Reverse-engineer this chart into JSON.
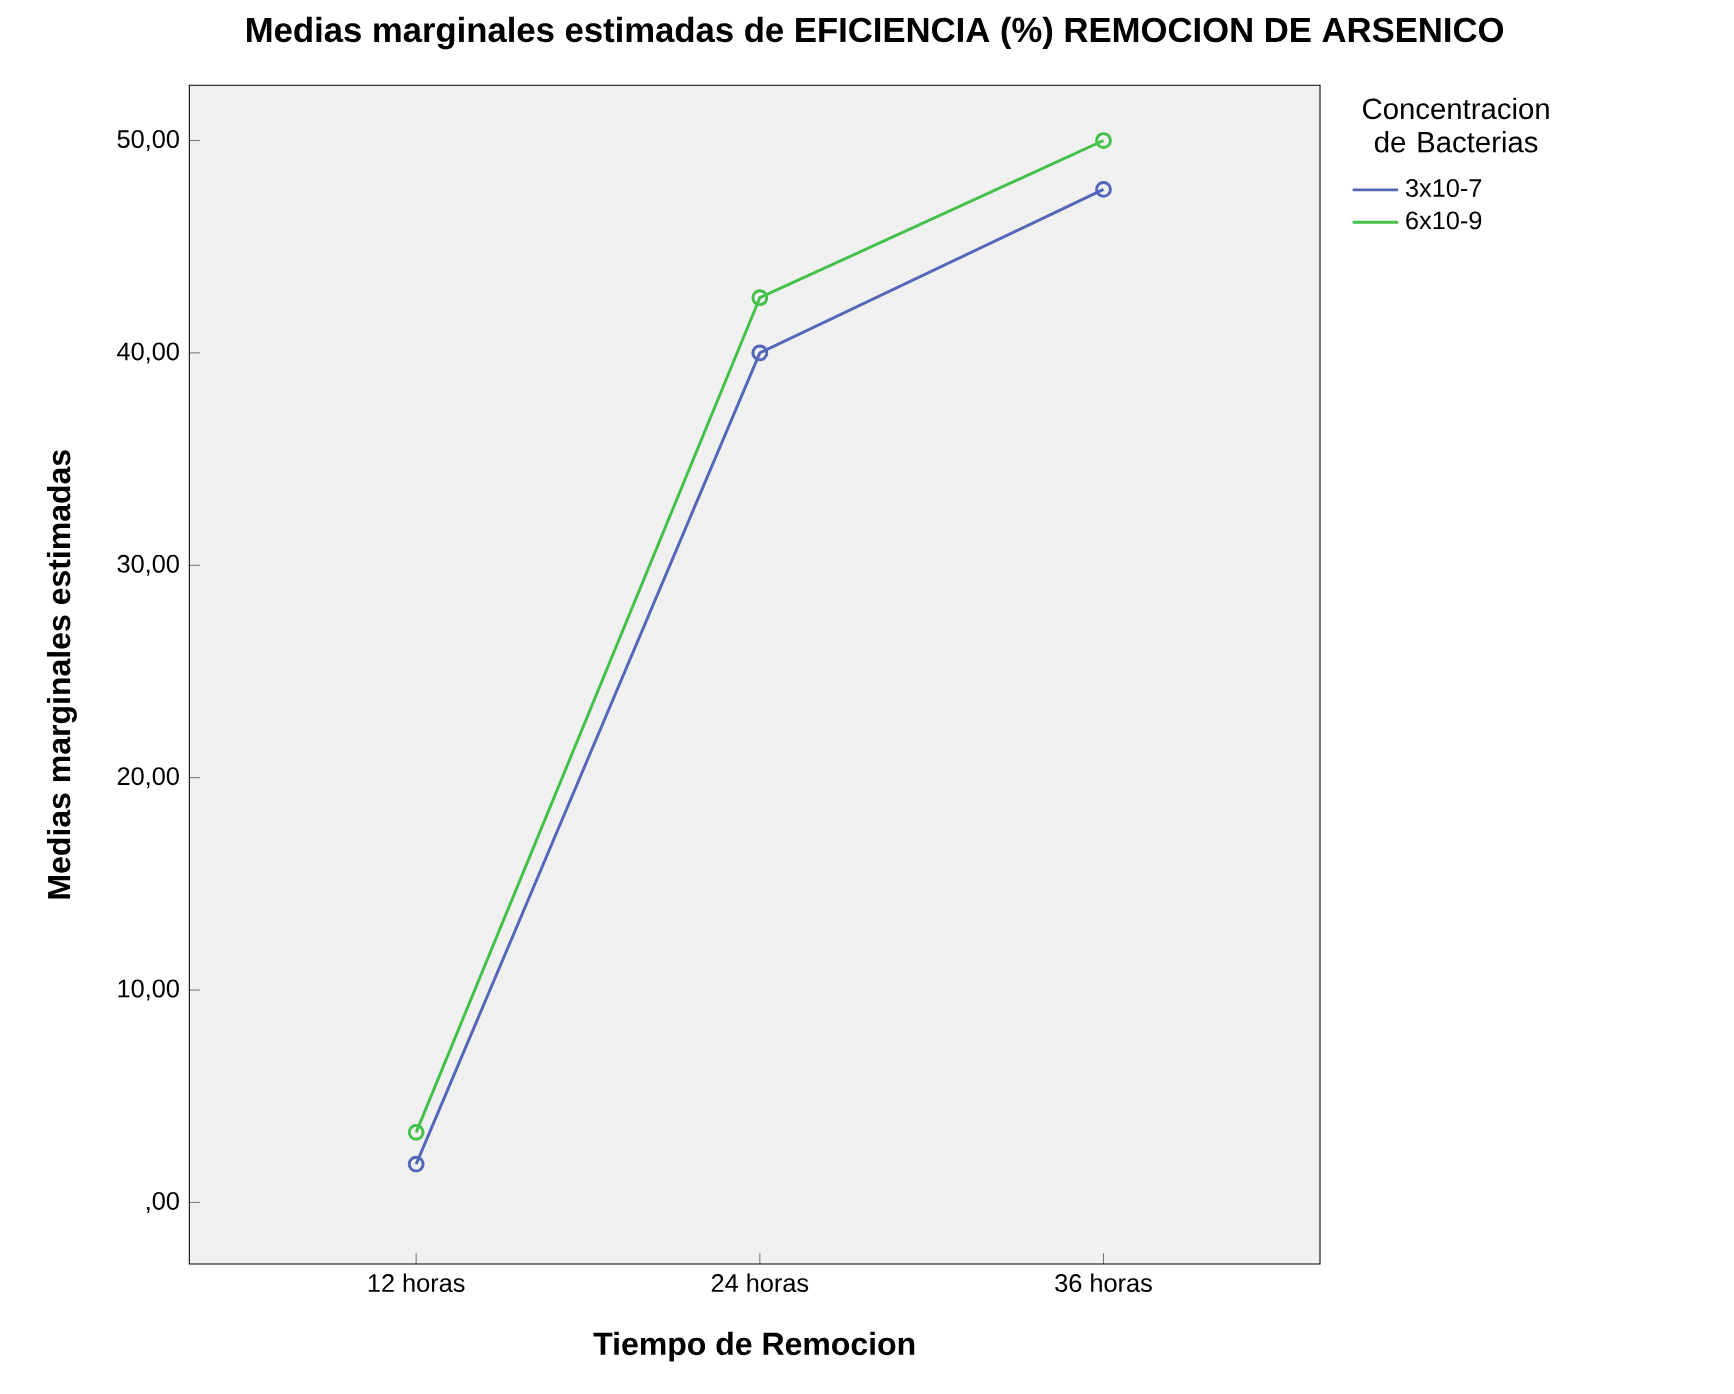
{
  "chart_data": {
    "type": "line",
    "title": "Medias marginales estimadas de EFICIENCIA (%) REMOCION DE ARSENICO",
    "xlabel": "Tiempo de Remocion",
    "ylabel": "Medias marginales estimadas",
    "legend_title": "Concentracion de Bacterias",
    "categories": [
      "12 horas",
      "24 horas",
      "36 horas"
    ],
    "series": [
      {
        "name": "3x10-7",
        "color": "#5366b8",
        "values": [
          1.8,
          40.0,
          47.7
        ]
      },
      {
        "name": "6x10-9",
        "color": "#43c049",
        "values": [
          3.3,
          42.6,
          50.0
        ]
      }
    ],
    "ylim": [
      -2.9,
      52.6
    ],
    "yticks": [
      {
        "value": 0,
        "label": ",00"
      },
      {
        "value": 10,
        "label": "10,00"
      },
      {
        "value": 20,
        "label": "20,00"
      },
      {
        "value": 30,
        "label": "30,00"
      },
      {
        "value": 40,
        "label": "40,00"
      },
      {
        "value": 50,
        "label": "50,00"
      }
    ],
    "marker": "circle",
    "line_style": "solid",
    "legend": "top right",
    "grid": false
  }
}
